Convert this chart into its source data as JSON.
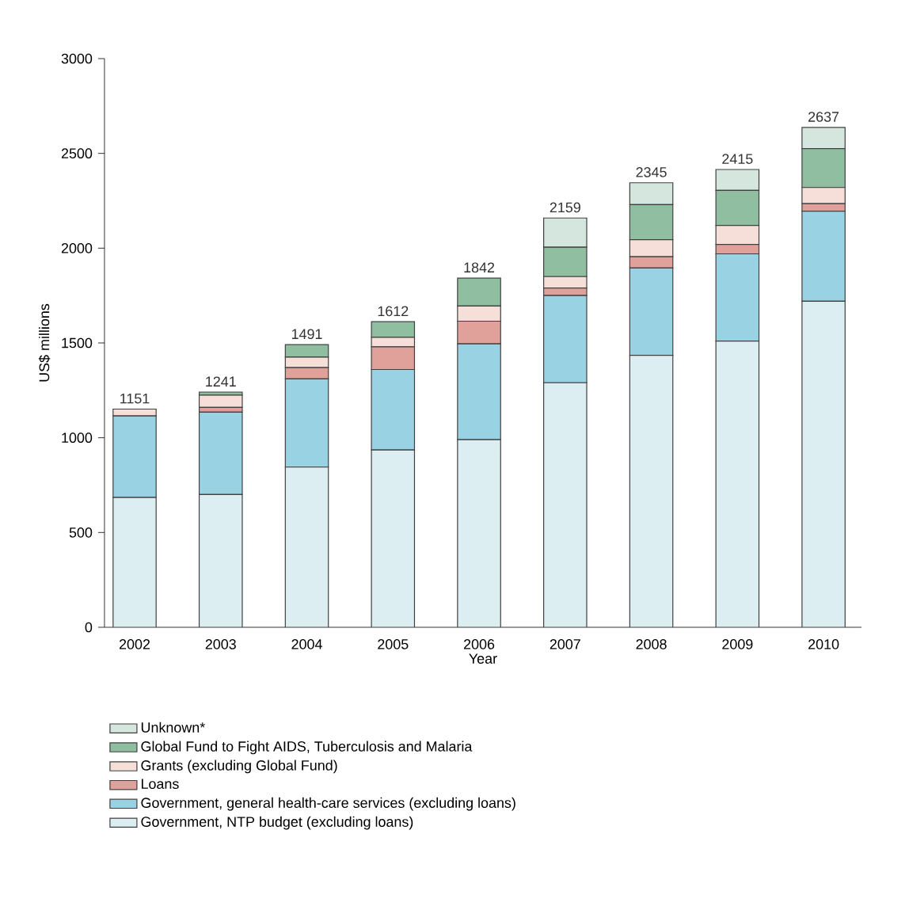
{
  "chart_data": {
    "type": "bar",
    "stacked": true,
    "xlabel": "Year",
    "ylabel": "US$ millions",
    "categories": [
      "2002",
      "2003",
      "2004",
      "2005",
      "2006",
      "2007",
      "2008",
      "2009",
      "2010"
    ],
    "ylim": [
      0,
      3000
    ],
    "yticks": [
      0,
      500,
      1000,
      1500,
      2000,
      2500,
      3000
    ],
    "legend": "bottom",
    "totals": [
      "1151",
      "1241",
      "1491",
      "1612",
      "1842",
      "2159",
      "2345",
      "2415",
      "2637"
    ],
    "series": [
      {
        "name": "Government, NTP budget (excluding loans)",
        "color": "#ddeef3",
        "values": [
          685,
          700,
          845,
          935,
          990,
          1290,
          1435,
          1510,
          1720
        ]
      },
      {
        "name": "Government, general health-care services (excluding loans)",
        "color": "#99d3e3",
        "values": [
          430,
          435,
          465,
          425,
          505,
          460,
          460,
          460,
          475
        ]
      },
      {
        "name": "Loans",
        "color": "#e0a19b",
        "values": [
          null,
          25,
          60,
          120,
          120,
          40,
          60,
          50,
          40
        ]
      },
      {
        "name": "Grants (excluding Global Fund)",
        "color": "#f6ded9",
        "values": [
          36,
          65,
          55,
          50,
          80,
          60,
          90,
          100,
          85
        ]
      },
      {
        "name": "Global Fund to Fight AIDS, Tuberculosis and Malaria",
        "color": "#8fbfa0",
        "values": [
          0,
          16,
          66,
          82,
          147,
          155,
          185,
          185,
          205
        ]
      },
      {
        "name": "Unknown*",
        "color": "#d5e6de",
        "values": [
          0,
          0,
          0,
          0,
          0,
          154,
          115,
          110,
          112
        ]
      }
    ]
  }
}
